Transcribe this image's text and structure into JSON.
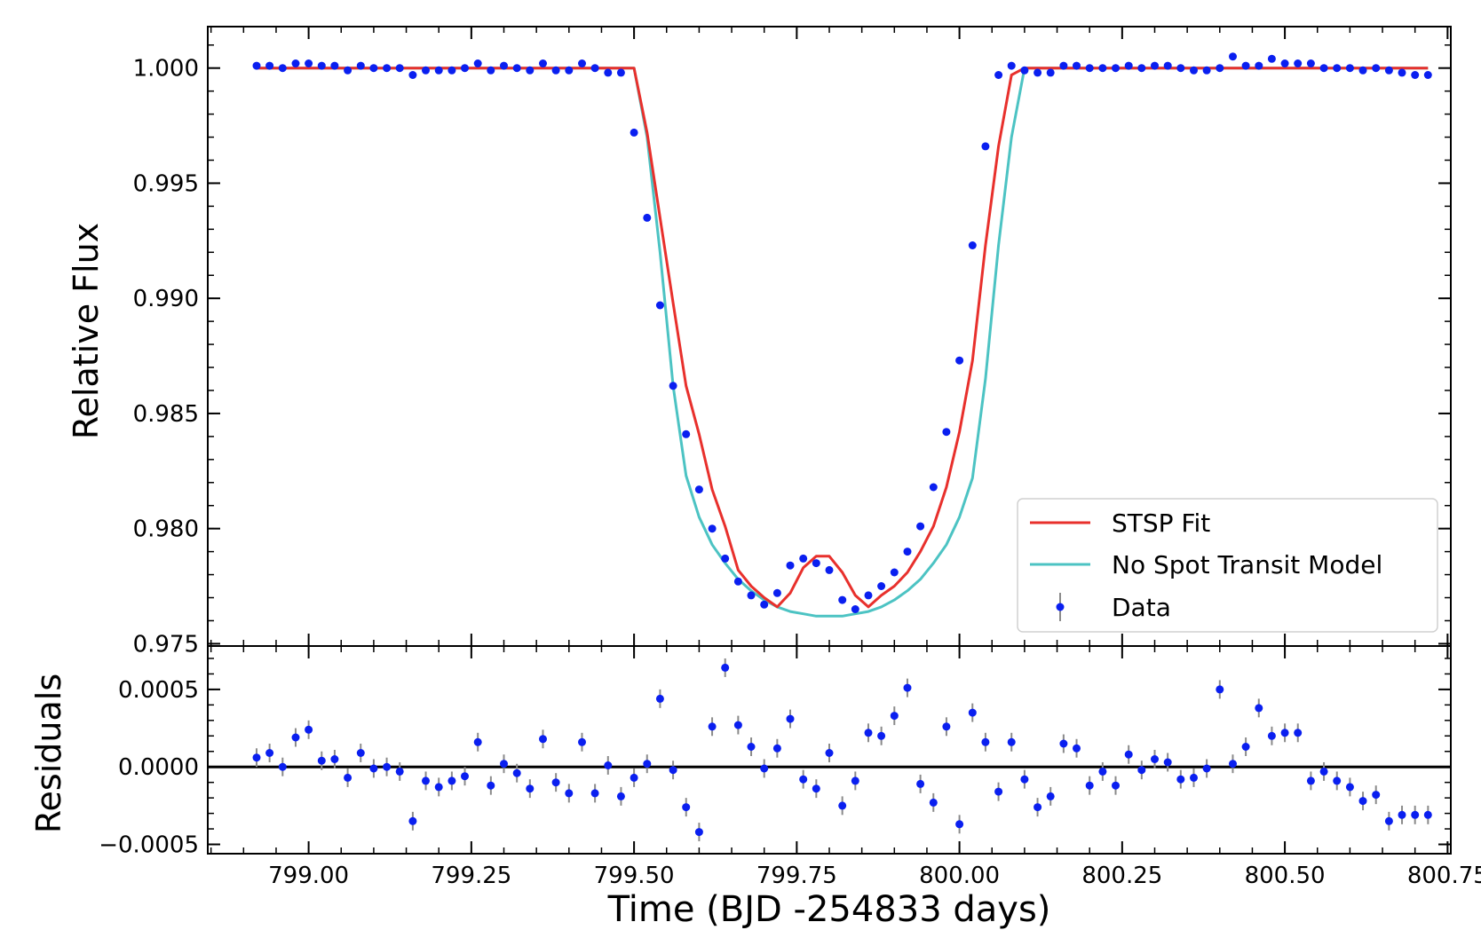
{
  "chart_data": [
    {
      "type": "line",
      "panel": "main",
      "ylabel": "Relative Flux",
      "xlim": [
        798.845,
        800.755
      ],
      "ylim": [
        0.9749,
        1.0018
      ],
      "yticks": [
        0.975,
        0.98,
        0.985,
        0.99,
        0.995,
        1.0
      ],
      "ytick_labels": [
        "0.975",
        "0.980",
        "0.985",
        "0.990",
        "0.995",
        "1.000"
      ],
      "legend": {
        "position": "lower-right",
        "entries": [
          "STSP Fit",
          "No Spot Transit Model",
          "Data"
        ]
      },
      "series": [
        {
          "name": "STSP Fit",
          "color": "#e8302c",
          "x": [
            798.92,
            799.5,
            799.52,
            799.54,
            799.56,
            799.58,
            799.6,
            799.62,
            799.64,
            799.66,
            799.68,
            799.7,
            799.72,
            799.74,
            799.76,
            799.78,
            799.8,
            799.82,
            799.84,
            799.86,
            799.88,
            799.9,
            799.92,
            799.94,
            799.96,
            799.98,
            800.0,
            800.02,
            800.04,
            800.06,
            800.08,
            800.1,
            800.12,
            800.72
          ],
          "y": [
            1.0,
            1.0,
            0.9972,
            0.9935,
            0.9898,
            0.9862,
            0.9841,
            0.9817,
            0.9801,
            0.9782,
            0.9775,
            0.977,
            0.9766,
            0.9772,
            0.9783,
            0.9788,
            0.9788,
            0.9781,
            0.9771,
            0.9766,
            0.9771,
            0.9775,
            0.9781,
            0.979,
            0.9801,
            0.9818,
            0.9842,
            0.9873,
            0.9923,
            0.9966,
            0.9997,
            1.0,
            1.0,
            1.0
          ]
        },
        {
          "name": "No Spot Transit Model",
          "color": "#4cc3c3",
          "x": [
            798.92,
            799.5,
            799.52,
            799.54,
            799.56,
            799.58,
            799.6,
            799.62,
            799.64,
            799.66,
            799.68,
            799.7,
            799.72,
            799.74,
            799.76,
            799.78,
            799.8,
            799.82,
            799.84,
            799.86,
            799.88,
            799.9,
            799.92,
            799.94,
            799.96,
            799.98,
            800.0,
            800.02,
            800.04,
            800.06,
            800.08,
            800.1,
            800.12,
            800.72
          ],
          "y": [
            1.0,
            1.0,
            0.997,
            0.992,
            0.9862,
            0.9823,
            0.9805,
            0.9793,
            0.9785,
            0.9778,
            0.9773,
            0.9769,
            0.9766,
            0.9764,
            0.9763,
            0.9762,
            0.9762,
            0.9762,
            0.9763,
            0.9764,
            0.9766,
            0.9769,
            0.9773,
            0.9778,
            0.9785,
            0.9793,
            0.9805,
            0.9822,
            0.9865,
            0.9923,
            0.997,
            1.0,
            1.0,
            1.0
          ]
        },
        {
          "name": "Data",
          "color": "#0a1ff0",
          "marker": "point-with-errorbar",
          "x": [
            798.92,
            798.94,
            798.96,
            798.98,
            799.0,
            799.02,
            799.04,
            799.06,
            799.08,
            799.1,
            799.12,
            799.14,
            799.16,
            799.18,
            799.2,
            799.22,
            799.24,
            799.26,
            799.28,
            799.3,
            799.32,
            799.34,
            799.36,
            799.38,
            799.4,
            799.42,
            799.44,
            799.46,
            799.48,
            799.5,
            799.52,
            799.54,
            799.56,
            799.58,
            799.6,
            799.62,
            799.64,
            799.66,
            799.68,
            799.7,
            799.72,
            799.74,
            799.76,
            799.78,
            799.8,
            799.82,
            799.84,
            799.86,
            799.88,
            799.9,
            799.92,
            799.94,
            799.96,
            799.98,
            800.0,
            800.02,
            800.04,
            800.06,
            800.08,
            800.1,
            800.12,
            800.14,
            800.16,
            800.18,
            800.2,
            800.22,
            800.24,
            800.26,
            800.28,
            800.3,
            800.32,
            800.34,
            800.36,
            800.38,
            800.4,
            800.42,
            800.44,
            800.46,
            800.48,
            800.5,
            800.52,
            800.54,
            800.56,
            800.58,
            800.6,
            800.62,
            800.64,
            800.66,
            800.68,
            800.7,
            800.72
          ],
          "y": [
            1.0001,
            1.0001,
            1.0,
            1.0002,
            1.0002,
            1.0001,
            1.0001,
            0.9999,
            1.0001,
            1.0,
            1.0,
            1.0,
            0.9997,
            0.9999,
            0.9999,
            0.9999,
            1.0,
            1.0002,
            0.9999,
            1.0001,
            1.0,
            0.9999,
            1.0002,
            0.9999,
            0.9999,
            1.0002,
            1.0,
            0.9998,
            0.9998,
            0.9972,
            0.9935,
            0.9897,
            0.9862,
            0.9841,
            0.9817,
            0.98,
            0.9787,
            0.9777,
            0.9771,
            0.9767,
            0.9772,
            0.9784,
            0.9787,
            0.9785,
            0.9782,
            0.9769,
            0.9765,
            0.9771,
            0.9775,
            0.9781,
            0.979,
            0.9801,
            0.9818,
            0.9842,
            0.9873,
            0.9923,
            0.9966,
            0.9997,
            1.0001,
            0.9999,
            0.9998,
            0.9998,
            1.0001,
            1.0001,
            1.0,
            1.0,
            1.0,
            1.0001,
            1.0,
            1.0001,
            1.0001,
            1.0,
            0.9999,
            0.9999,
            1.0,
            1.0005,
            1.0001,
            1.0001,
            1.0004,
            1.0002,
            1.0002,
            1.0002,
            1.0,
            1.0,
            1.0,
            0.9999,
            1.0,
            0.9999,
            0.9998,
            0.9997,
            0.9997
          ]
        }
      ]
    },
    {
      "type": "scatter",
      "panel": "residuals",
      "xlabel": "Time (BJD -254833 days)",
      "ylabel": "Residuals",
      "xlim": [
        798.845,
        800.755
      ],
      "ylim": [
        -0.00056,
        0.00078
      ],
      "xticks": [
        799.0,
        799.25,
        799.5,
        799.75,
        800.0,
        800.25,
        800.5,
        800.75
      ],
      "xtick_labels": [
        "799.00",
        "799.25",
        "799.50",
        "799.75",
        "800.00",
        "800.25",
        "800.50",
        "800.75"
      ],
      "yticks": [
        -0.0005,
        0.0,
        0.0005
      ],
      "ytick_labels": [
        "−0.0005",
        "0.0000",
        "0.0005"
      ],
      "zero_line": 0.0,
      "series": [
        {
          "name": "Residuals",
          "color": "#0a1ff0",
          "errorbar_color": "#8a8a8a",
          "error": 6e-05,
          "x": [
            798.92,
            798.94,
            798.96,
            798.98,
            799.0,
            799.02,
            799.04,
            799.06,
            799.08,
            799.1,
            799.12,
            799.14,
            799.16,
            799.18,
            799.2,
            799.22,
            799.24,
            799.26,
            799.28,
            799.3,
            799.32,
            799.34,
            799.36,
            799.38,
            799.4,
            799.42,
            799.44,
            799.46,
            799.48,
            799.5,
            799.52,
            799.54,
            799.56,
            799.58,
            799.6,
            799.62,
            799.64,
            799.66,
            799.68,
            799.7,
            799.72,
            799.74,
            799.76,
            799.78,
            799.8,
            799.82,
            799.84,
            799.86,
            799.88,
            799.9,
            799.92,
            799.94,
            799.96,
            799.98,
            800.0,
            800.02,
            800.04,
            800.06,
            800.08,
            800.1,
            800.12,
            800.14,
            800.16,
            800.18,
            800.2,
            800.22,
            800.24,
            800.26,
            800.28,
            800.3,
            800.32,
            800.34,
            800.36,
            800.38,
            800.4,
            800.42,
            800.44,
            800.46,
            800.48,
            800.5,
            800.52,
            800.54,
            800.56,
            800.58,
            800.6,
            800.62,
            800.64,
            800.66,
            800.68,
            800.7,
            800.72
          ],
          "y": [
            6e-05,
            9e-05,
            0.0,
            0.00019,
            0.00024,
            4e-05,
            5e-05,
            -7e-05,
            9e-05,
            -1e-05,
            0.0,
            -3e-05,
            -0.00035,
            -9e-05,
            -0.00013,
            -9e-05,
            -6e-05,
            0.00016,
            -0.00012,
            2e-05,
            -4e-05,
            -0.00014,
            0.00018,
            -0.0001,
            -0.00017,
            0.00016,
            -0.00017,
            1e-05,
            -0.00019,
            -7e-05,
            2e-05,
            0.00044,
            -2e-05,
            -0.00026,
            -0.00042,
            0.00026,
            0.00064,
            0.00027,
            0.00013,
            -1e-05,
            0.00012,
            0.00031,
            -8e-05,
            -0.00014,
            9e-05,
            -0.00025,
            -9e-05,
            0.00022,
            0.0002,
            0.00033,
            0.00051,
            -0.00011,
            -0.00023,
            0.00026,
            -0.00037,
            0.00035,
            0.00016,
            -0.00016,
            0.00016,
            -8e-05,
            -0.00026,
            -0.00019,
            0.00015,
            0.00012,
            -0.00012,
            -3e-05,
            -0.00012,
            8e-05,
            -2e-05,
            5e-05,
            3e-05,
            -8e-05,
            -7e-05,
            -1e-05,
            0.0005,
            2e-05,
            0.00013,
            0.00038,
            0.0002,
            0.00022,
            0.00022,
            -9e-05,
            -3e-05,
            -9e-05,
            -0.00013,
            -0.00022,
            -0.00018,
            -0.00035,
            -0.00031,
            -0.00031,
            -0.00031
          ]
        }
      ]
    }
  ]
}
